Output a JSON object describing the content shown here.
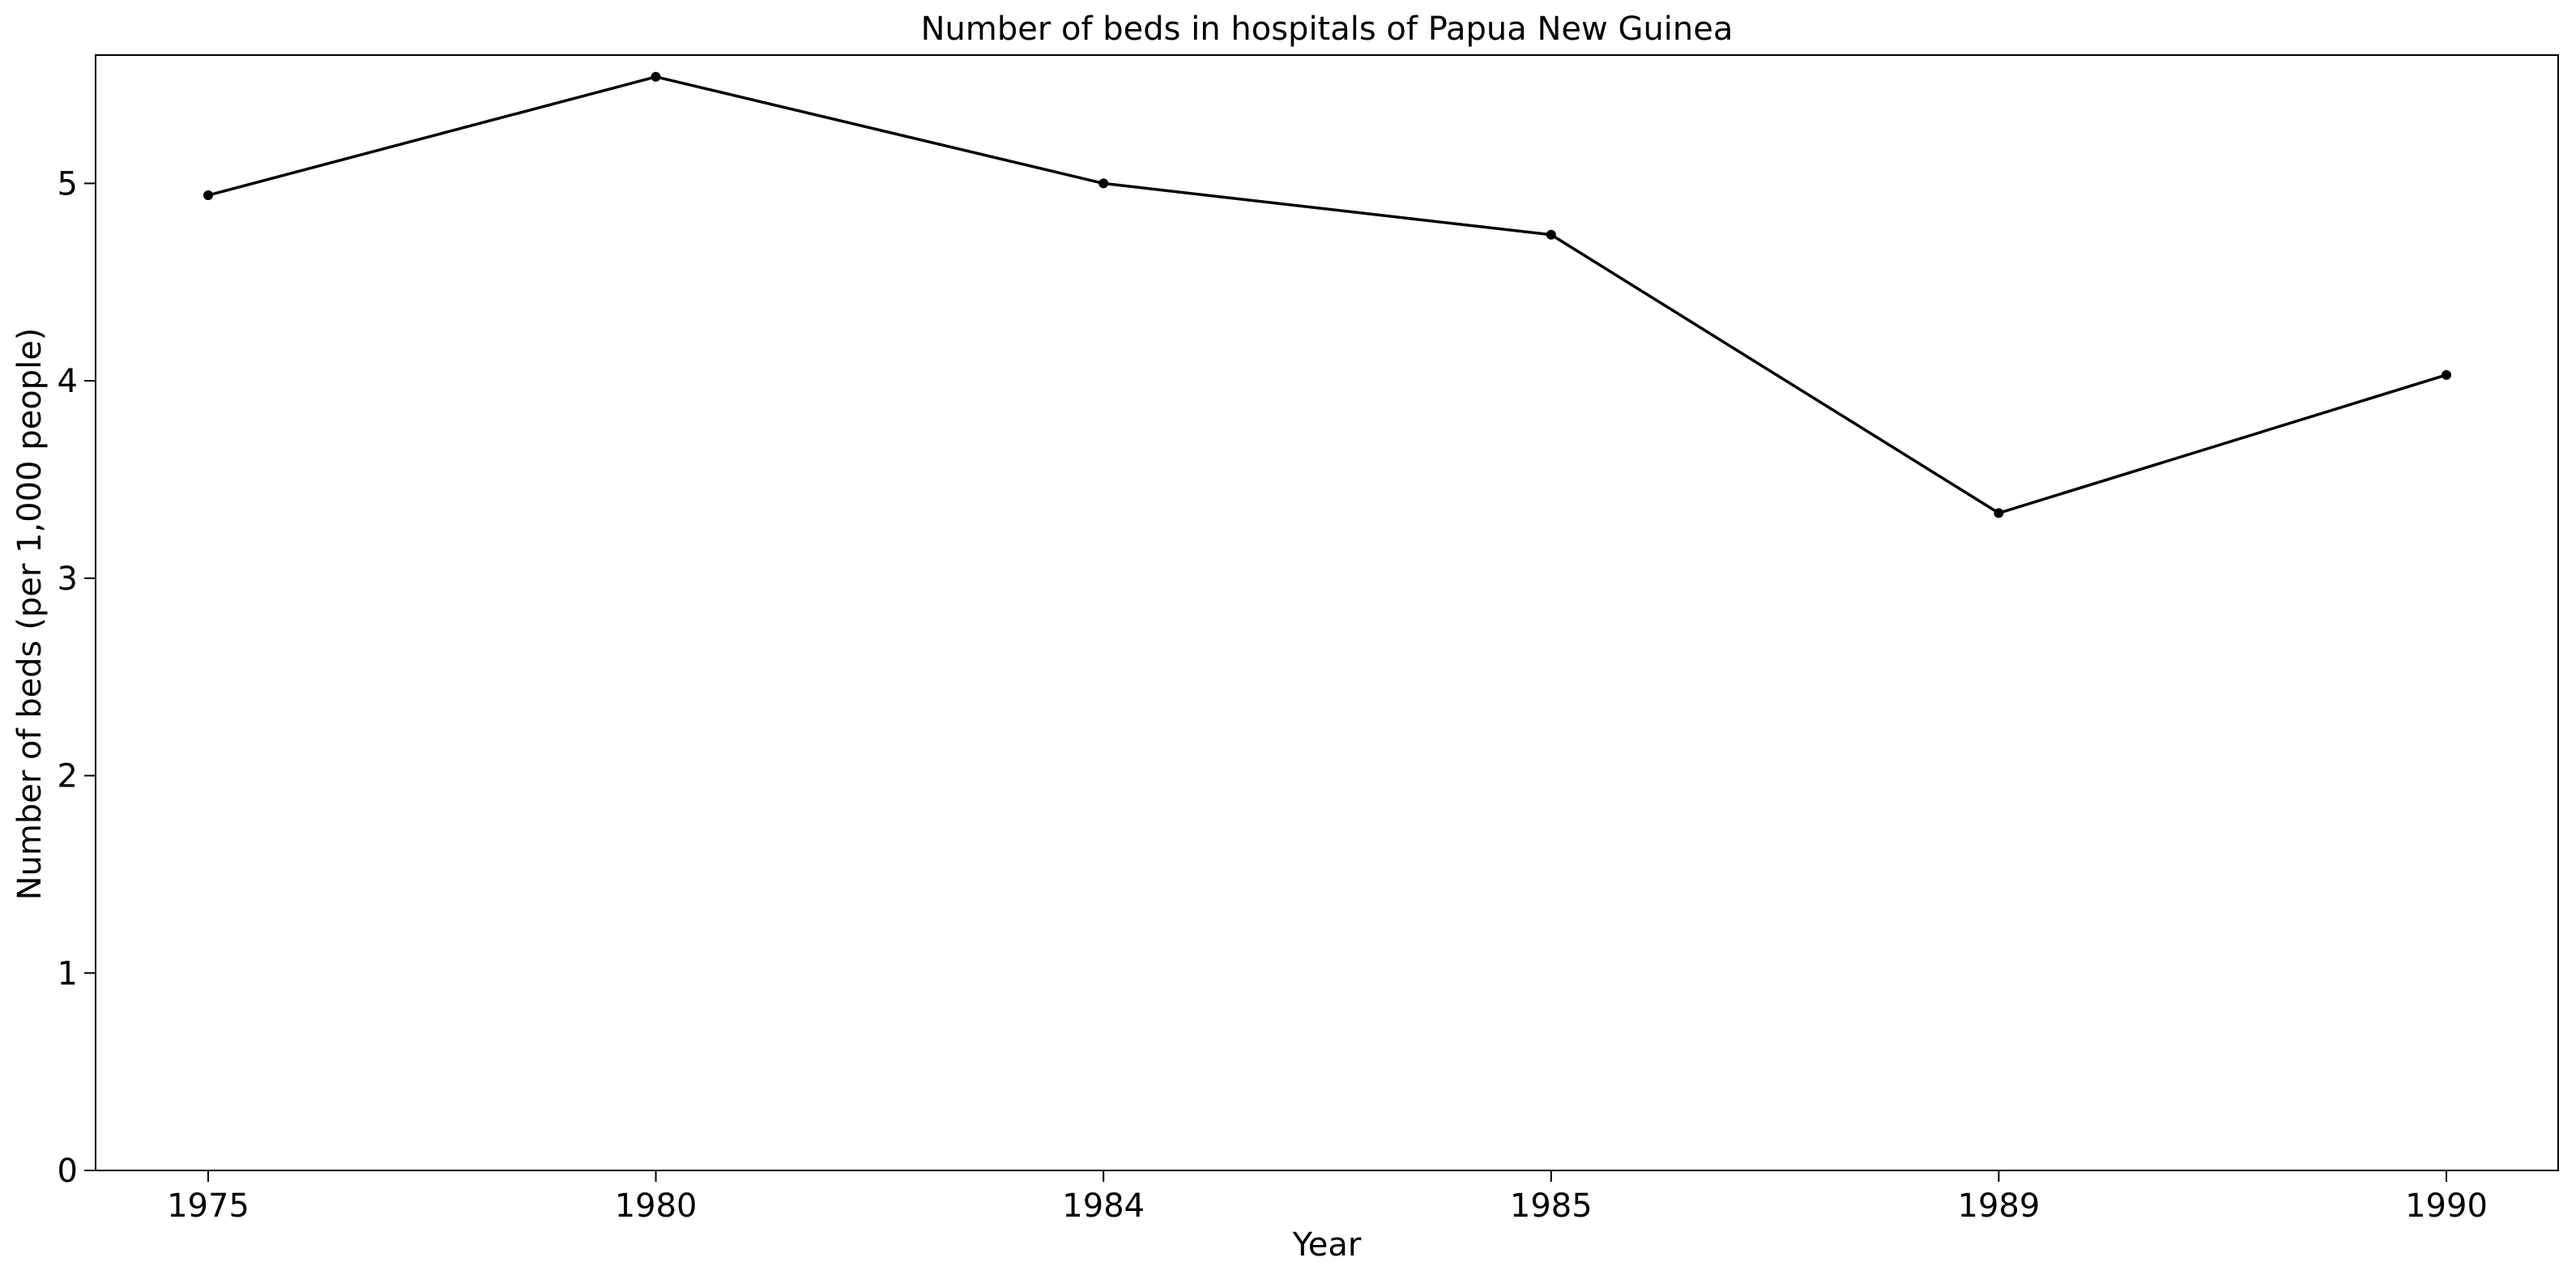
{
  "chart_data": {
    "type": "line",
    "title": "Number of beds in hospitals of Papua New Guinea",
    "xlabel": "Year",
    "ylabel": "Number of beds (per 1,000 people)",
    "categories": [
      "1975",
      "1980",
      "1984",
      "1985",
      "1989",
      "1990"
    ],
    "series": [
      {
        "values": [
          4.94,
          5.54,
          5.0,
          4.74,
          3.33,
          4.03
        ]
      }
    ],
    "ylim": [
      0,
      5.65
    ],
    "yticks": [
      0,
      1,
      2,
      3,
      4,
      5
    ],
    "grid": false,
    "legend": "none",
    "colors": {
      "line": "#000000",
      "marker": "#000000",
      "axis": "#000000",
      "background": "#ffffff"
    }
  }
}
